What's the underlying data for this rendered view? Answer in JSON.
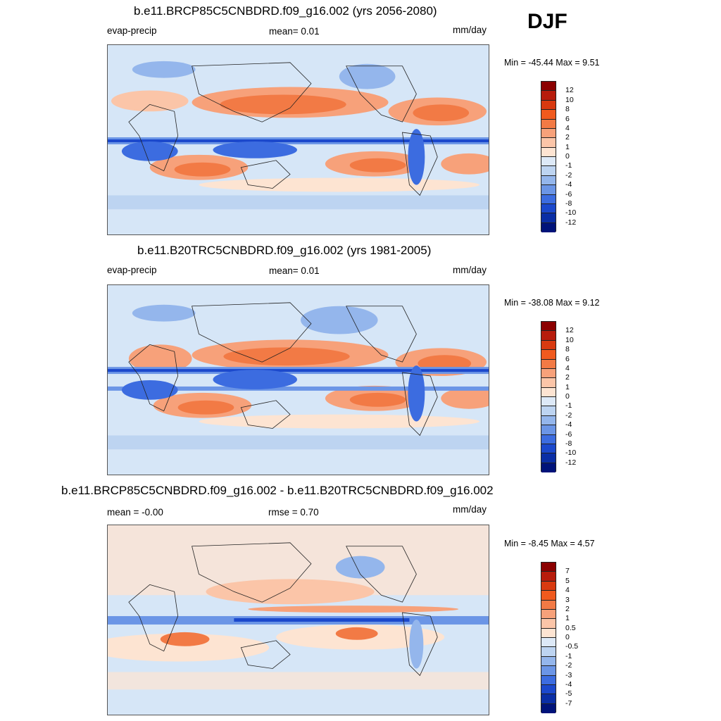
{
  "season": "DJF",
  "panels": [
    {
      "title": "b.e11.BRCP85C5CNBDRD.f09_g16.002 (yrs 2056-2080)",
      "left_label": "evap-precip",
      "center_label": "mean=   0.01",
      "units": "mm/day",
      "minmax": "Min = -45.44 Max =    9.51",
      "colorbar_labels": [
        "12",
        "10",
        "8",
        "6",
        "4",
        "2",
        "1",
        "0",
        "-1",
        "-2",
        "-4",
        "-6",
        "-8",
        "-10",
        "-12"
      ]
    },
    {
      "title": "b.e11.B20TRC5CNBDRD.f09_g16.002 (yrs 1981-2005)",
      "left_label": "evap-precip",
      "center_label": "mean=   0.01",
      "units": "mm/day",
      "minmax": "Min = -38.08 Max =    9.12",
      "colorbar_labels": [
        "12",
        "10",
        "8",
        "6",
        "4",
        "2",
        "1",
        "0",
        "-1",
        "-2",
        "-4",
        "-6",
        "-8",
        "-10",
        "-12"
      ]
    },
    {
      "title": "b.e11.BRCP85C5CNBDRD.f09_g16.002 - b.e11.B20TRC5CNBDRD.f09_g16.002",
      "left_label": "mean =  -0.00",
      "center_label": "rmse =   0.70",
      "units": "mm/day",
      "minmax": "Min =  -8.45 Max =    4.57",
      "colorbar_labels": [
        "7",
        "5",
        "4",
        "3",
        "2",
        "1",
        "0.5",
        "0",
        "-0.5",
        "-1",
        "-2",
        "-3",
        "-4",
        "-5",
        "-7"
      ]
    }
  ],
  "colorbar_colors": [
    "#8b0000",
    "#b71c0c",
    "#d93a10",
    "#f05a1e",
    "#f27a45",
    "#f7a17a",
    "#fbc5a8",
    "#fde4d2",
    "#dde9f7",
    "#bdd4f1",
    "#94b6ec",
    "#6b95e6",
    "#3c6ce0",
    "#1b48cc",
    "#0a2ea5",
    "#00137a"
  ]
}
